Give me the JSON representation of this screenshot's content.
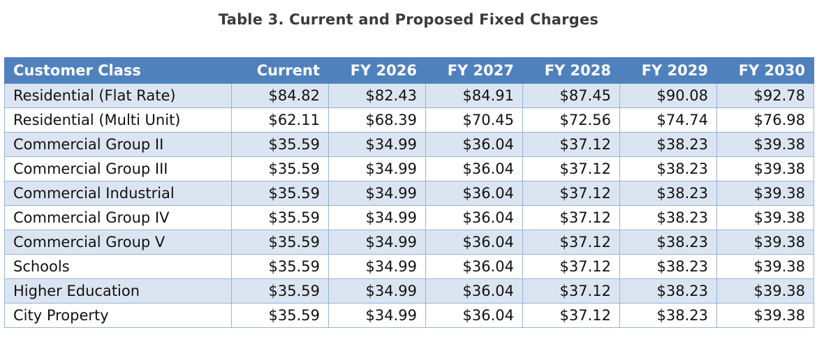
{
  "caption": "Table 3. Current and Proposed Fixed Charges",
  "table": {
    "headers": [
      "Customer Class",
      "Current",
      "FY 2026",
      "FY 2027",
      "FY 2028",
      "FY 2029",
      "FY 2030"
    ],
    "rows": [
      [
        "Residential (Flat Rate)",
        "$84.82",
        "$82.43",
        "$84.91",
        "$87.45",
        "$90.08",
        "$92.78"
      ],
      [
        "Residential (Multi Unit)",
        "$62.11",
        "$68.39",
        "$70.45",
        "$72.56",
        "$74.74",
        "$76.98"
      ],
      [
        "Commercial Group II",
        "$35.59",
        "$34.99",
        "$36.04",
        "$37.12",
        "$38.23",
        "$39.38"
      ],
      [
        "Commercial Group III",
        "$35.59",
        "$34.99",
        "$36.04",
        "$37.12",
        "$38.23",
        "$39.38"
      ],
      [
        "Commercial Industrial",
        "$35.59",
        "$34.99",
        "$36.04",
        "$37.12",
        "$38.23",
        "$39.38"
      ],
      [
        "Commercial Group IV",
        "$35.59",
        "$34.99",
        "$36.04",
        "$37.12",
        "$38.23",
        "$39.38"
      ],
      [
        "Commercial Group V",
        "$35.59",
        "$34.99",
        "$36.04",
        "$37.12",
        "$38.23",
        "$39.38"
      ],
      [
        "Schools",
        "$35.59",
        "$34.99",
        "$36.04",
        "$37.12",
        "$38.23",
        "$39.38"
      ],
      [
        "Higher Education",
        "$35.59",
        "$34.99",
        "$36.04",
        "$37.12",
        "$38.23",
        "$39.38"
      ],
      [
        "City Property",
        "$35.59",
        "$34.99",
        "$36.04",
        "$37.12",
        "$38.23",
        "$39.38"
      ]
    ]
  },
  "colors": {
    "header_bg": "#4f81bd",
    "header_text": "#ffffff",
    "band_row_bg": "#dbe5f1",
    "plain_row_bg": "#ffffff",
    "grid_line": "#95b3d7"
  }
}
